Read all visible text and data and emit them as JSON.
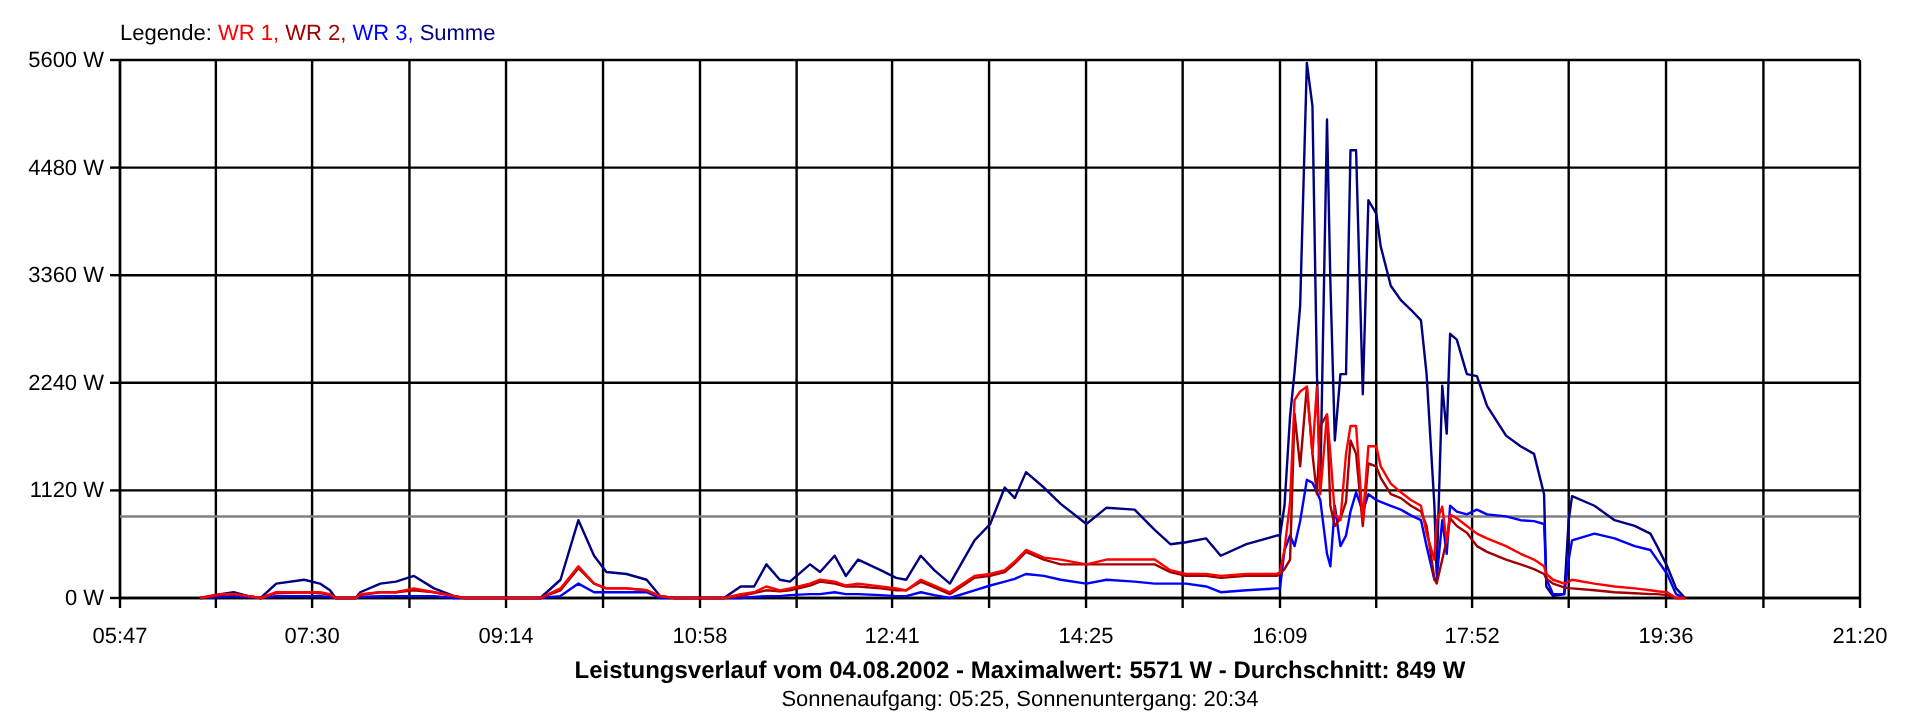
{
  "chart_data": {
    "type": "line",
    "title": "Leistungsverlauf vom 04.08.2002 - Maximalwert: 5571 W - Durchschnitt: 849 W",
    "subtitle": "Sonnenaufgang: 05:25, Sonnenuntergang: 20:34",
    "legend_title": "Legende:",
    "legend": "top left",
    "grid": true,
    "marker": "none",
    "line_style": "solid",
    "x": [
      6.5,
      6.68,
      6.8,
      6.93,
      7.04,
      7.18,
      7.43,
      7.57,
      7.66,
      7.71,
      7.89,
      7.93,
      8.11,
      8.25,
      8.41,
      8.59,
      8.77,
      8.86,
      9.54,
      9.72,
      9.88,
      10.02,
      10.13,
      10.31,
      10.49,
      10.61,
      10.74,
      11.18,
      11.33,
      11.45,
      11.56,
      11.68,
      11.77,
      11.95,
      12.04,
      12.17,
      12.27,
      12.38,
      12.58,
      12.72,
      12.81,
      12.94,
      13.06,
      13.2,
      13.42,
      13.56,
      13.69,
      13.78,
      13.88,
      14.04,
      14.19,
      14.42,
      14.6,
      14.85,
      15.03,
      15.17,
      15.31,
      15.49,
      15.62,
      15.85,
      16.12,
      16.15,
      16.19,
      16.24,
      16.28,
      16.33,
      16.39,
      16.44,
      16.48,
      16.51,
      16.57,
      16.6,
      16.64,
      16.69,
      16.74,
      16.78,
      16.83,
      16.89,
      16.94,
      17.01,
      17.05,
      17.14,
      17.23,
      17.32,
      17.41,
      17.46,
      17.53,
      17.55,
      17.6,
      17.64,
      17.67,
      17.73,
      17.82,
      17.91,
      18.0,
      18.17,
      18.3,
      18.42,
      18.51,
      18.53,
      18.59,
      18.69,
      18.73,
      18.76,
      18.96,
      19.14,
      19.32,
      19.46,
      19.52,
      19.61,
      19.69,
      19.77
    ],
    "xlim": [
      5.7833,
      21.3333
    ],
    "xticks": [
      {
        "value": 5.7833,
        "label": "05:47"
      },
      {
        "value": 6.64,
        "label": null
      },
      {
        "value": 7.5,
        "label": "07:30"
      },
      {
        "value": 8.37,
        "label": null
      },
      {
        "value": 9.2333,
        "label": "09:14"
      },
      {
        "value": 10.1,
        "label": null
      },
      {
        "value": 10.9667,
        "label": "10:58"
      },
      {
        "value": 11.83,
        "label": null
      },
      {
        "value": 12.6833,
        "label": "12:41"
      },
      {
        "value": 13.55,
        "label": null
      },
      {
        "value": 14.4167,
        "label": "14:25"
      },
      {
        "value": 15.28,
        "label": null
      },
      {
        "value": 16.15,
        "label": "16:09"
      },
      {
        "value": 17.01,
        "label": null
      },
      {
        "value": 17.8667,
        "label": "17:52"
      },
      {
        "value": 18.73,
        "label": null
      },
      {
        "value": 19.6,
        "label": "19:36"
      },
      {
        "value": 20.47,
        "label": null
      },
      {
        "value": 21.3333,
        "label": "21:20"
      }
    ],
    "ylim": [
      0,
      5600
    ],
    "yticks": [
      {
        "value": 0,
        "label": "0 W"
      },
      {
        "value": 1120,
        "label": "1120 W"
      },
      {
        "value": 2240,
        "label": "2240 W"
      },
      {
        "value": 3360,
        "label": "3360 W"
      },
      {
        "value": 4480,
        "label": "4480 W"
      },
      {
        "value": 5600,
        "label": "5600 W"
      }
    ],
    "ref_lines": [
      {
        "axis": "y",
        "value": 849,
        "color": "#808080"
      }
    ],
    "series": [
      {
        "name": "WR 1,",
        "color": "#ff0000",
        "values": [
          0,
          40,
          40,
          20,
          0,
          60,
          60,
          60,
          40,
          0,
          0,
          40,
          60,
          60,
          100,
          60,
          20,
          0,
          0,
          100,
          330,
          150,
          100,
          100,
          80,
          20,
          0,
          0,
          40,
          60,
          120,
          80,
          100,
          150,
          190,
          170,
          130,
          150,
          120,
          100,
          80,
          190,
          130,
          60,
          230,
          250,
          290,
          380,
          500,
          420,
          400,
          350,
          400,
          400,
          400,
          290,
          250,
          250,
          230,
          250,
          250,
          270,
          500,
          1000,
          2060,
          2150,
          2200,
          1500,
          2200,
          1080,
          1910,
          1500,
          870,
          810,
          1500,
          1790,
          1790,
          810,
          1580,
          1580,
          1370,
          1190,
          1100,
          1020,
          960,
          670,
          400,
          800,
          950,
          580,
          870,
          830,
          750,
          670,
          620,
          540,
          460,
          400,
          330,
          250,
          190,
          150,
          170,
          190,
          150,
          120,
          100,
          80,
          70,
          60,
          0,
          0
        ]
      },
      {
        "name": "WR 2,",
        "color": "#a00000",
        "values": [
          0,
          30,
          40,
          20,
          0,
          50,
          60,
          50,
          30,
          0,
          0,
          30,
          60,
          60,
          80,
          60,
          20,
          0,
          0,
          80,
          310,
          150,
          100,
          100,
          80,
          20,
          0,
          0,
          20,
          50,
          80,
          70,
          80,
          130,
          170,
          150,
          120,
          120,
          100,
          80,
          80,
          170,
          110,
          40,
          210,
          230,
          270,
          360,
          480,
          400,
          350,
          350,
          350,
          350,
          350,
          270,
          230,
          230,
          210,
          230,
          230,
          250,
          300,
          400,
          1920,
          1370,
          2200,
          1500,
          1080,
          1790,
          1910,
          960,
          750,
          830,
          1000,
          1640,
          1500,
          750,
          1400,
          1370,
          1250,
          1080,
          1040,
          960,
          900,
          750,
          200,
          150,
          400,
          600,
          830,
          750,
          680,
          540,
          480,
          400,
          350,
          300,
          250,
          200,
          150,
          110,
          100,
          100,
          80,
          60,
          50,
          40,
          40,
          30,
          0,
          0
        ]
      },
      {
        "name": "WR 3,",
        "color": "#0000ff",
        "values": [
          0,
          10,
          20,
          10,
          0,
          20,
          20,
          20,
          10,
          0,
          0,
          10,
          20,
          20,
          20,
          20,
          0,
          0,
          0,
          20,
          150,
          60,
          60,
          60,
          60,
          0,
          0,
          0,
          0,
          10,
          20,
          20,
          30,
          40,
          40,
          60,
          40,
          40,
          30,
          20,
          20,
          60,
          30,
          0,
          80,
          130,
          170,
          200,
          250,
          230,
          190,
          150,
          190,
          170,
          150,
          150,
          150,
          120,
          60,
          80,
          100,
          100,
          500,
          650,
          540,
          800,
          1230,
          1200,
          1100,
          1020,
          460,
          330,
          960,
          540,
          650,
          900,
          1100,
          900,
          1080,
          1020,
          1000,
          960,
          920,
          860,
          810,
          540,
          190,
          200,
          810,
          460,
          960,
          900,
          870,
          920,
          870,
          850,
          810,
          800,
          770,
          200,
          40,
          40,
          400,
          600,
          670,
          620,
          540,
          500,
          400,
          250,
          40,
          0
        ]
      },
      {
        "name": "Summe",
        "color": "#000080",
        "values": [
          0,
          40,
          60,
          20,
          0,
          150,
          190,
          150,
          80,
          0,
          0,
          60,
          150,
          170,
          230,
          100,
          20,
          0,
          0,
          190,
          810,
          440,
          270,
          250,
          190,
          20,
          0,
          0,
          120,
          120,
          350,
          190,
          170,
          350,
          270,
          440,
          230,
          400,
          290,
          210,
          190,
          440,
          290,
          150,
          600,
          770,
          1150,
          1040,
          1310,
          1150,
          980,
          770,
          940,
          920,
          710,
          560,
          580,
          620,
          440,
          560,
          650,
          650,
          960,
          1890,
          2350,
          3040,
          5570,
          5120,
          2330,
          1170,
          4980,
          3300,
          1640,
          2330,
          2330,
          4660,
          4660,
          2120,
          4140,
          4000,
          3660,
          3250,
          3100,
          3000,
          2890,
          2330,
          960,
          250,
          2210,
          1710,
          2750,
          2690,
          2330,
          2310,
          2000,
          1690,
          1580,
          1500,
          1080,
          120,
          20,
          40,
          810,
          1060,
          960,
          810,
          750,
          670,
          540,
          330,
          100,
          0
        ]
      }
    ]
  }
}
